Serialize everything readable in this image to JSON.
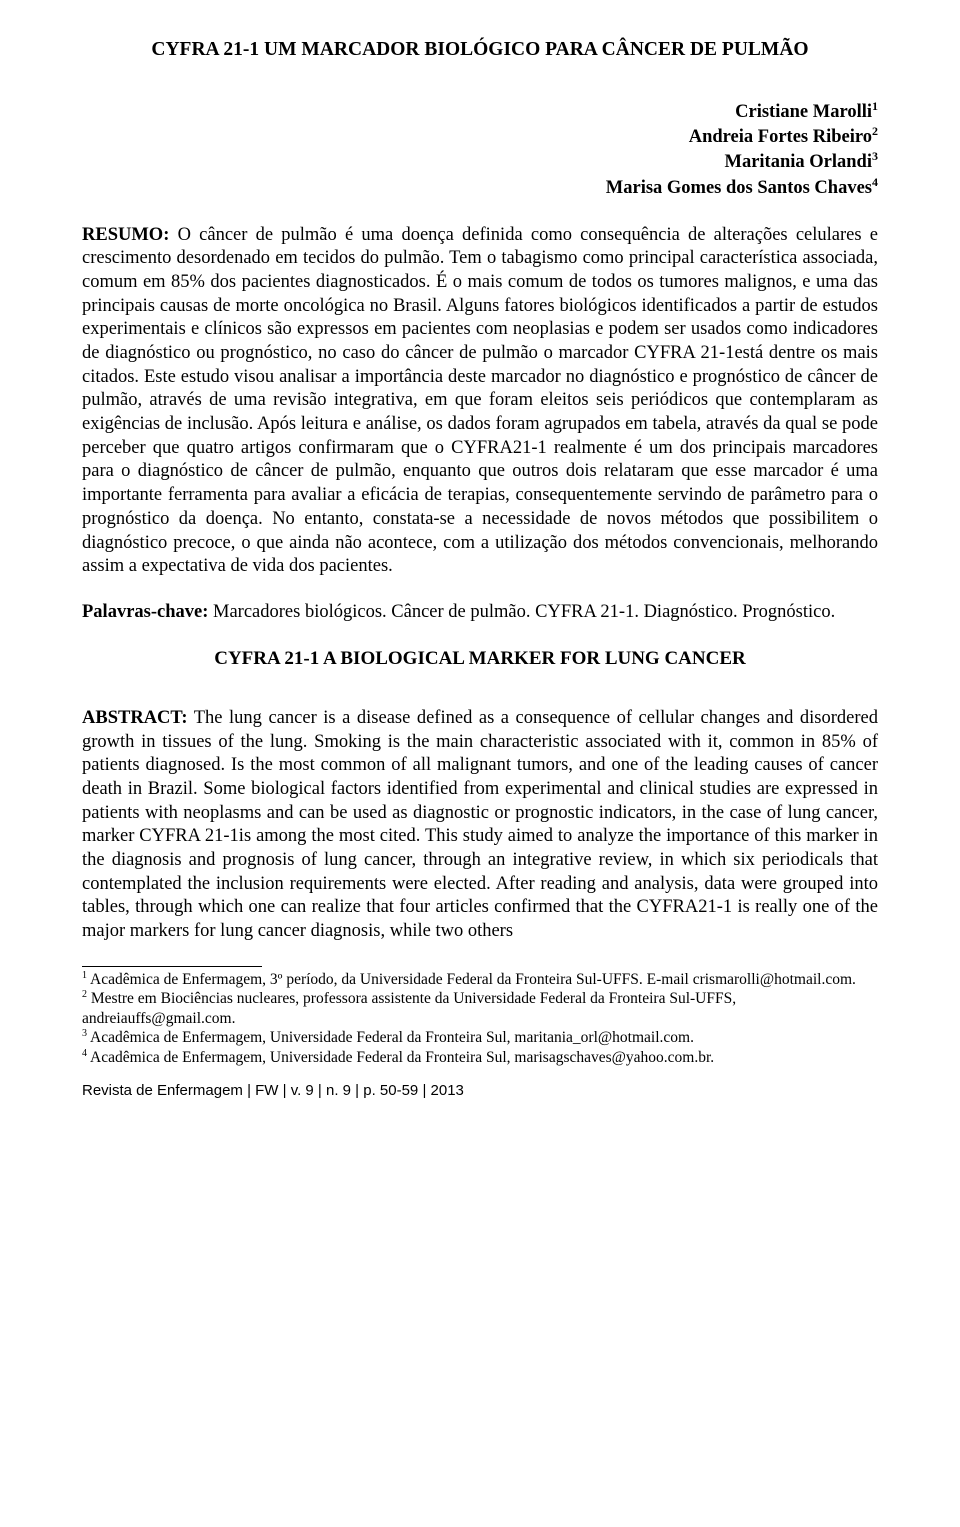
{
  "title": "CYFRA 21-1 UM MARCADOR BIOLÓGICO PARA CÂNCER DE PULMÃO",
  "authors": [
    {
      "name": "Cristiane Marolli",
      "ref": "1"
    },
    {
      "name": "Andreia Fortes Ribeiro",
      "ref": "2"
    },
    {
      "name": "Maritania Orlandi",
      "ref": "3"
    },
    {
      "name": "Marisa Gomes dos Santos Chaves",
      "ref": "4"
    }
  ],
  "resumo_label": "RESUMO:",
  "resumo_text": " O câncer de pulmão é uma doença definida como consequência de alterações celulares e crescimento desordenado em tecidos do pulmão. Tem o tabagismo como principal característica associada, comum em 85% dos pacientes diagnosticados. É o mais comum de todos os tumores malignos, e uma das principais causas de morte oncológica no Brasil. Alguns fatores biológicos identificados a partir de estudos experimentais e clínicos são expressos em pacientes com neoplasias e podem ser usados como indicadores de diagnóstico ou prognóstico, no caso do câncer de pulmão o marcador CYFRA 21-1está dentre os mais citados. Este estudo visou analisar a importância deste marcador no diagnóstico e prognóstico de câncer de pulmão, através de uma revisão integrativa, em que foram eleitos seis periódicos que contemplaram as exigências de inclusão. Após leitura e análise, os dados foram agrupados em tabela, através da qual se pode perceber que quatro artigos confirmaram que o CYFRA21-1 realmente é um dos principais marcadores para o diagnóstico de câncer de pulmão, enquanto que outros dois relataram que esse marcador é uma importante ferramenta para avaliar a eficácia de terapias, consequentemente servindo de parâmetro para o prognóstico da doença. No entanto, constata-se a necessidade de novos métodos que possibilitem o diagnóstico precoce, o que ainda não acontece, com a utilização dos métodos convencionais, melhorando assim a expectativa de vida dos pacientes.",
  "palavras_label": "Palavras-chave:",
  "palavras_text": " Marcadores biológicos. Câncer de pulmão. CYFRA 21-1. Diagnóstico. Prognóstico.",
  "subtitle": "CYFRA 21-1 A BIOLOGICAL MARKER FOR LUNG CANCER",
  "abstract_label": "ABSTRACT:",
  "abstract_text": " The lung cancer is a disease defined as a consequence of cellular changes and disordered growth in tissues of the lung. Smoking is the main characteristic associated with it, common in 85% of patients diagnosed. Is the most common of all malignant tumors, and one of the leading causes of cancer death in Brazil. Some biological factors identified from experimental and clinical studies are expressed in patients with neoplasms and can be used as diagnostic or prognostic indicators, in the case of lung cancer, marker CYFRA 21-1is among the most cited. This study aimed to analyze the importance of this marker in the diagnosis and prognosis of lung cancer, through an integrative review, in which six periodicals that contemplated the inclusion requirements were elected. After reading and analysis, data were grouped into tables, through which one can realize that four articles confirmed that the CYFRA21-1 is really one of the major markers for lung cancer diagnosis, while two others",
  "footnotes": [
    {
      "ref": "1",
      "text": " Acadêmica de Enfermagem, 3º período, da Universidade Federal da Fronteira Sul-UFFS. E-mail crismarolli@hotmail.com."
    },
    {
      "ref": "2",
      "text": " Mestre em Biociências nucleares, professora assistente da Universidade Federal da Fronteira Sul-UFFS, andreiauffs@gmail.com."
    },
    {
      "ref": "3",
      "text": " Acadêmica de Enfermagem, Universidade Federal da Fronteira Sul, maritania_orl@hotmail.com."
    },
    {
      "ref": "4",
      "text": " Acadêmica de Enfermagem, Universidade Federal da Fronteira Sul, marisagschaves@yahoo.com.br."
    }
  ],
  "journal_footer": "Revista de Enfermagem | FW | v. 9 | n. 9 | p. 50-59 | 2013"
}
